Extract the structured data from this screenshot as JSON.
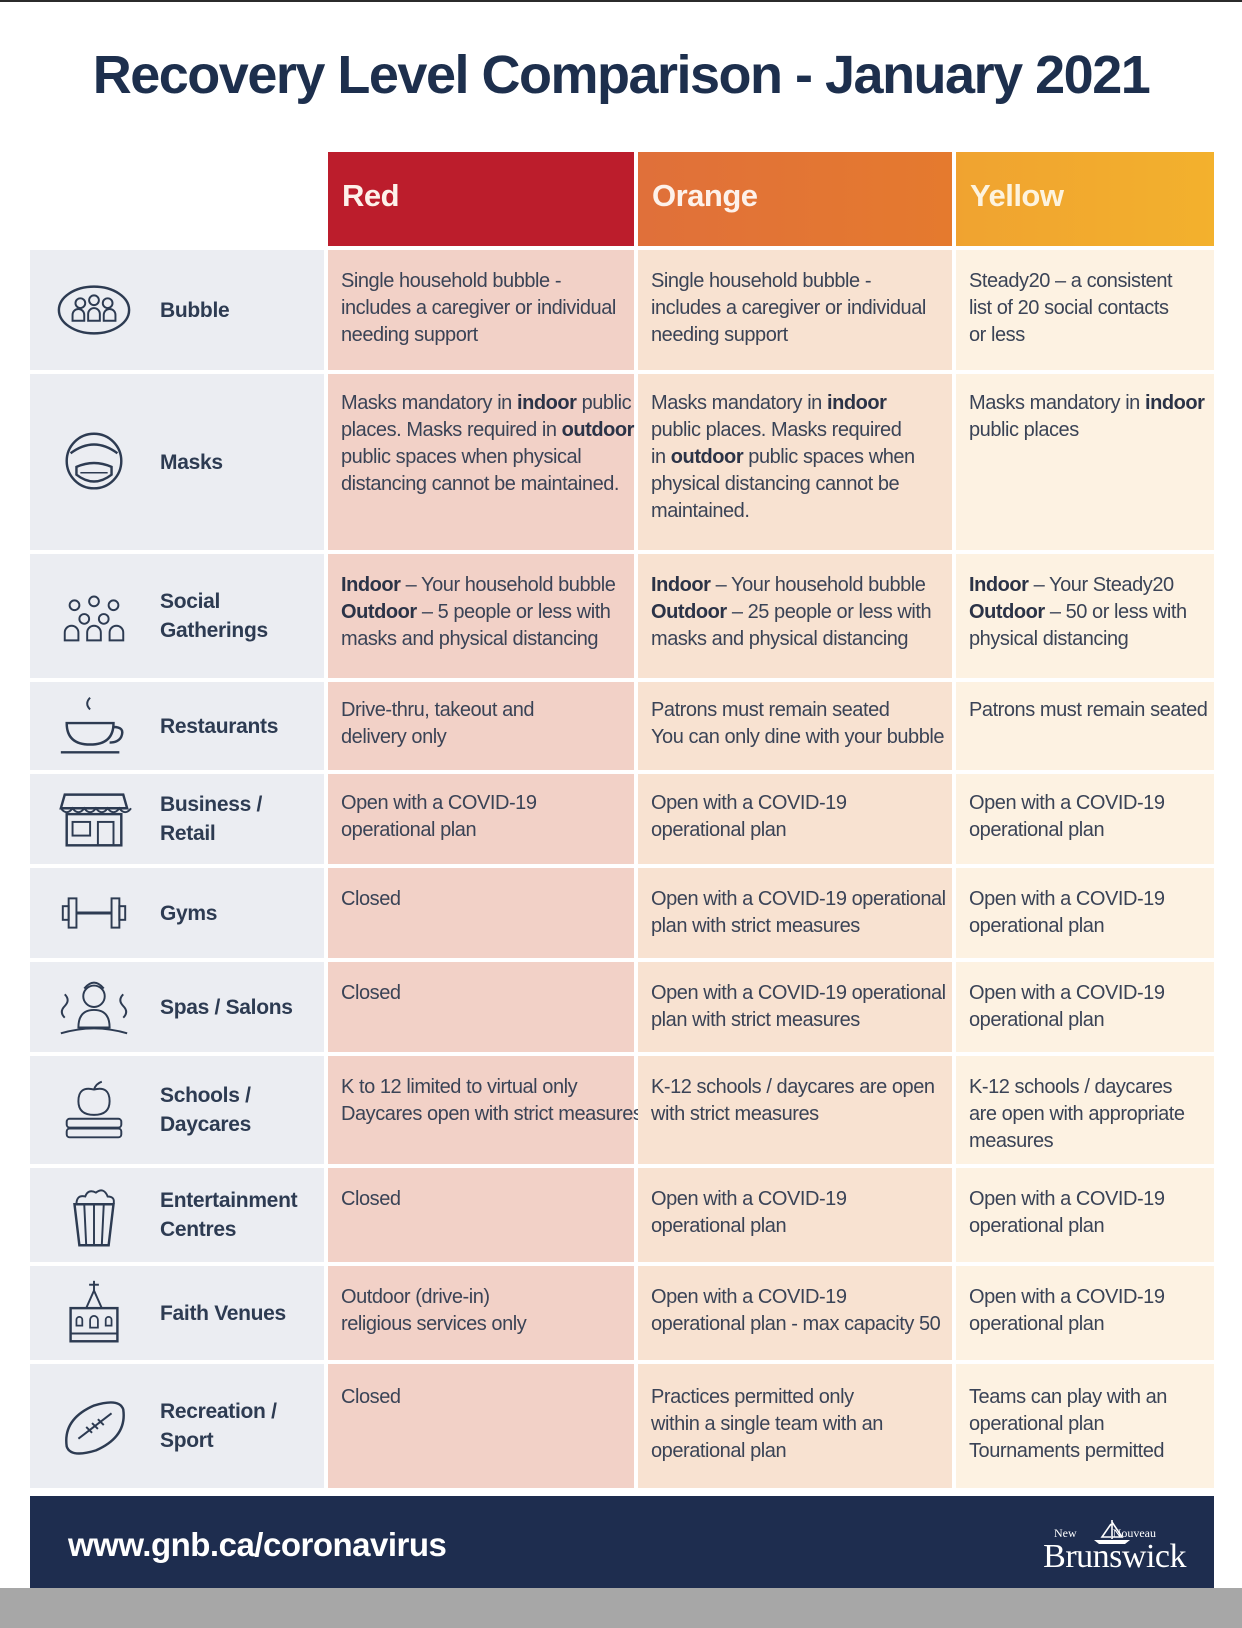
{
  "title": "Recovery Level Comparison - January 2021",
  "colors": {
    "red": "#bc1d2c",
    "orange": "#e3762f",
    "yellow": "#f2ab2e",
    "navy": "#1e2d4f"
  },
  "levels": [
    "Red",
    "Orange",
    "Yellow"
  ],
  "rows": [
    {
      "icon": "bubble-icon",
      "label_lines": [
        "Bubble"
      ],
      "red": [
        [
          {
            "t": "Single household bubble -"
          }
        ],
        [
          {
            "t": "includes a caregiver or individual"
          }
        ],
        [
          {
            "t": "needing support"
          }
        ]
      ],
      "orange": [
        [
          {
            "t": "Single household bubble -"
          }
        ],
        [
          {
            "t": "includes a caregiver or individual"
          }
        ],
        [
          {
            "t": "needing support"
          }
        ]
      ],
      "yellow": [
        [
          {
            "t": "Steady20 – a consistent"
          }
        ],
        [
          {
            "t": "list of 20 social contacts"
          }
        ],
        [
          {
            "t": "or less"
          }
        ]
      ]
    },
    {
      "icon": "face-mask-icon",
      "label_lines": [
        "Masks"
      ],
      "red": [
        [
          {
            "t": "Masks mandatory in "
          },
          {
            "t": "indoor",
            "b": true
          },
          {
            "t": " public"
          }
        ],
        [
          {
            "t": "places. Masks required in "
          },
          {
            "t": "outdoor",
            "b": true
          }
        ],
        [
          {
            "t": "public spaces when physical"
          }
        ],
        [
          {
            "t": "distancing cannot be maintained."
          }
        ]
      ],
      "orange": [
        [
          {
            "t": "Masks mandatory in "
          },
          {
            "t": "indoor",
            "b": true
          }
        ],
        [
          {
            "t": "public places. Masks required"
          }
        ],
        [
          {
            "t": "in "
          },
          {
            "t": "outdoor",
            "b": true
          },
          {
            "t": " public spaces when"
          }
        ],
        [
          {
            "t": "physical distancing cannot be"
          }
        ],
        [
          {
            "t": "maintained."
          }
        ]
      ],
      "yellow": [
        [
          {
            "t": "Masks mandatory in "
          },
          {
            "t": "indoor",
            "b": true
          }
        ],
        [
          {
            "t": "public places"
          }
        ]
      ]
    },
    {
      "icon": "group-icon",
      "label_lines": [
        "Social",
        "Gatherings"
      ],
      "red": [
        [
          {
            "t": "Indoor",
            "b": true
          },
          {
            "t": " – Your household bubble"
          }
        ],
        [
          {
            "t": "Outdoor",
            "b": true
          },
          {
            "t": " – 5 people or less with"
          }
        ],
        [
          {
            "t": "masks and physical distancing"
          }
        ]
      ],
      "orange": [
        [
          {
            "t": "Indoor",
            "b": true
          },
          {
            "t": " – Your household bubble"
          }
        ],
        [
          {
            "t": "Outdoor",
            "b": true
          },
          {
            "t": " – 25 people or less with"
          }
        ],
        [
          {
            "t": "masks and physical distancing"
          }
        ]
      ],
      "yellow": [
        [
          {
            "t": "Indoor",
            "b": true
          },
          {
            "t": " – Your Steady20"
          }
        ],
        [
          {
            "t": "Outdoor",
            "b": true
          },
          {
            "t": " – 50 or less with"
          }
        ],
        [
          {
            "t": "physical distancing"
          }
        ]
      ]
    },
    {
      "icon": "coffee-cup-icon",
      "label_lines": [
        "Restaurants"
      ],
      "red": [
        [
          {
            "t": "Drive-thru, takeout and"
          }
        ],
        [
          {
            "t": "delivery only"
          }
        ]
      ],
      "orange": [
        [
          {
            "t": "Patrons must remain seated"
          }
        ],
        [
          {
            "t": "You can only dine with your bubble"
          }
        ]
      ],
      "yellow": [
        [
          {
            "t": "Patrons must remain seated"
          }
        ]
      ]
    },
    {
      "icon": "storefront-icon",
      "label_lines": [
        "Business /",
        "Retail"
      ],
      "red": [
        [
          {
            "t": "Open with a COVID-19"
          }
        ],
        [
          {
            "t": "operational plan"
          }
        ]
      ],
      "orange": [
        [
          {
            "t": "Open with a COVID-19"
          }
        ],
        [
          {
            "t": "operational plan"
          }
        ]
      ],
      "yellow": [
        [
          {
            "t": "Open with a COVID-19"
          }
        ],
        [
          {
            "t": "operational plan"
          }
        ]
      ]
    },
    {
      "icon": "dumbbell-icon",
      "label_lines": [
        "Gyms"
      ],
      "red": [
        [
          {
            "t": "Closed"
          }
        ]
      ],
      "orange": [
        [
          {
            "t": "Open with a COVID-19 operational"
          }
        ],
        [
          {
            "t": "plan with strict measures"
          }
        ]
      ],
      "yellow": [
        [
          {
            "t": "Open with a COVID-19"
          }
        ],
        [
          {
            "t": "operational plan"
          }
        ]
      ]
    },
    {
      "icon": "spa-person-icon",
      "label_lines": [
        "Spas / Salons"
      ],
      "red": [
        [
          {
            "t": "Closed"
          }
        ]
      ],
      "orange": [
        [
          {
            "t": "Open with a COVID-19 operational"
          }
        ],
        [
          {
            "t": "plan with strict measures"
          }
        ]
      ],
      "yellow": [
        [
          {
            "t": "Open with a COVID-19"
          }
        ],
        [
          {
            "t": "operational plan"
          }
        ]
      ]
    },
    {
      "icon": "apple-books-icon",
      "label_lines": [
        "Schools /",
        "Daycares"
      ],
      "red": [
        [
          {
            "t": "K to 12 limited to virtual only"
          }
        ],
        [
          {
            "t": "Daycares open with strict measures"
          }
        ]
      ],
      "orange": [
        [
          {
            "t": "K-12 schools / daycares are open"
          }
        ],
        [
          {
            "t": "with strict measures"
          }
        ]
      ],
      "yellow": [
        [
          {
            "t": "K-12 schools / daycares"
          }
        ],
        [
          {
            "t": "are open with appropriate"
          }
        ],
        [
          {
            "t": "measures"
          }
        ]
      ]
    },
    {
      "icon": "popcorn-icon",
      "label_lines": [
        "Entertainment",
        "Centres"
      ],
      "red": [
        [
          {
            "t": "Closed"
          }
        ]
      ],
      "orange": [
        [
          {
            "t": "Open with a COVID-19"
          }
        ],
        [
          {
            "t": "operational plan"
          }
        ]
      ],
      "yellow": [
        [
          {
            "t": "Open with a COVID-19"
          }
        ],
        [
          {
            "t": "operational plan"
          }
        ]
      ]
    },
    {
      "icon": "church-icon",
      "label_lines": [
        "Faith Venues"
      ],
      "red": [
        [
          {
            "t": "Outdoor (drive-in)"
          }
        ],
        [
          {
            "t": "religious services only"
          }
        ]
      ],
      "orange": [
        [
          {
            "t": "Open with a COVID-19"
          }
        ],
        [
          {
            "t": "operational plan - max capacity 50"
          }
        ]
      ],
      "yellow": [
        [
          {
            "t": "Open with a COVID-19"
          }
        ],
        [
          {
            "t": "operational plan"
          }
        ]
      ]
    },
    {
      "icon": "football-icon",
      "label_lines": [
        "Recreation /",
        "Sport"
      ],
      "red": [
        [
          {
            "t": "Closed"
          }
        ]
      ],
      "orange": [
        [
          {
            "t": "Practices permitted only"
          }
        ],
        [
          {
            "t": "within a single team with an"
          }
        ],
        [
          {
            "t": "operational plan"
          }
        ]
      ],
      "yellow": [
        [
          {
            "t": "Teams can play with an"
          }
        ],
        [
          {
            "t": "operational plan"
          }
        ],
        [
          {
            "t": "Tournaments permitted"
          }
        ]
      ]
    }
  ],
  "footer": {
    "url": "www.gnb.ca/coronavirus",
    "logo_small_left": "New",
    "logo_small_right": "Nouveau",
    "logo_name": "Brunswick"
  }
}
